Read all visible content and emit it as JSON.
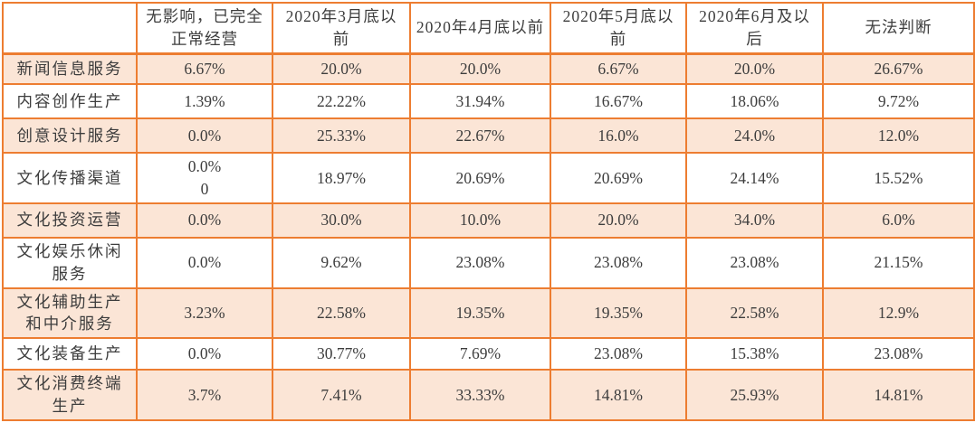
{
  "table": {
    "columns": [
      "",
      "无影响，已完全正常经营",
      "2020年3月底以前",
      "2020年4月底以前",
      "2020年5月底以前",
      "2020年6月及以后",
      "无法判断"
    ],
    "rows": [
      {
        "label": "新闻信息服务",
        "values": [
          "6.67%",
          "20.0%",
          "20.0%",
          "6.67%",
          "20.0%",
          "26.67%"
        ]
      },
      {
        "label": "内容创作生产",
        "values": [
          "1.39%",
          "22.22%",
          "31.94%",
          "16.67%",
          "18.06%",
          "9.72%"
        ]
      },
      {
        "label": "创意设计服务",
        "values": [
          "0.0%",
          "25.33%",
          "22.67%",
          "16.0%",
          "24.0%",
          "12.0%"
        ]
      },
      {
        "label": "文化传播渠道",
        "values": [
          "0.0%\n0",
          "18.97%",
          "20.69%",
          "20.69%",
          "24.14%",
          "15.52%"
        ]
      },
      {
        "label": "文化投资运营",
        "values": [
          "0.0%",
          "30.0%",
          "10.0%",
          "20.0%",
          "34.0%",
          "6.0%"
        ]
      },
      {
        "label": "文化娱乐休闲服务",
        "values": [
          "0.0%",
          "9.62%",
          "23.08%",
          "23.08%",
          "23.08%",
          "21.15%"
        ]
      },
      {
        "label": "文化辅助生产和中介服务",
        "values": [
          "3.23%",
          "22.58%",
          "19.35%",
          "19.35%",
          "22.58%",
          "12.9%"
        ]
      },
      {
        "label": "文化装备生产",
        "values": [
          "0.0%",
          "30.77%",
          "7.69%",
          "23.08%",
          "15.38%",
          "23.08%"
        ]
      },
      {
        "label": "文化消费终端生产",
        "values": [
          "3.7%",
          "7.41%",
          "33.33%",
          "14.81%",
          "25.93%",
          "14.81%"
        ]
      }
    ]
  },
  "colors": {
    "border": "#ED7D31",
    "shaded_row_bg": "#FBE5D6",
    "text": "#3D3D3D",
    "background": "#FFFFFF"
  },
  "chart_data": {
    "type": "table",
    "title": "",
    "columns": [
      "",
      "无影响，已完全正常经营",
      "2020年3月底以前",
      "2020年4月底以前",
      "2020年5月底以前",
      "2020年6月及以后",
      "无法判断"
    ],
    "rows": [
      [
        "新闻信息服务",
        "6.67%",
        "20.0%",
        "20.0%",
        "6.67%",
        "20.0%",
        "26.67%"
      ],
      [
        "内容创作生产",
        "1.39%",
        "22.22%",
        "31.94%",
        "16.67%",
        "18.06%",
        "9.72%"
      ],
      [
        "创意设计服务",
        "0.0%",
        "25.33%",
        "22.67%",
        "16.0%",
        "24.0%",
        "12.0%"
      ],
      [
        "文化传播渠道",
        "0.0% 0",
        "18.97%",
        "20.69%",
        "20.69%",
        "24.14%",
        "15.52%"
      ],
      [
        "文化投资运营",
        "0.0%",
        "30.0%",
        "10.0%",
        "20.0%",
        "34.0%",
        "6.0%"
      ],
      [
        "文化娱乐休闲服务",
        "0.0%",
        "9.62%",
        "23.08%",
        "23.08%",
        "23.08%",
        "21.15%"
      ],
      [
        "文化辅助生产和中介服务",
        "3.23%",
        "22.58%",
        "19.35%",
        "19.35%",
        "22.58%",
        "12.9%"
      ],
      [
        "文化装备生产",
        "0.0%",
        "30.77%",
        "7.69%",
        "23.08%",
        "15.38%",
        "23.08%"
      ],
      [
        "文化消费终端生产",
        "3.7%",
        "7.41%",
        "33.33%",
        "14.81%",
        "25.93%",
        "14.81%"
      ]
    ]
  }
}
